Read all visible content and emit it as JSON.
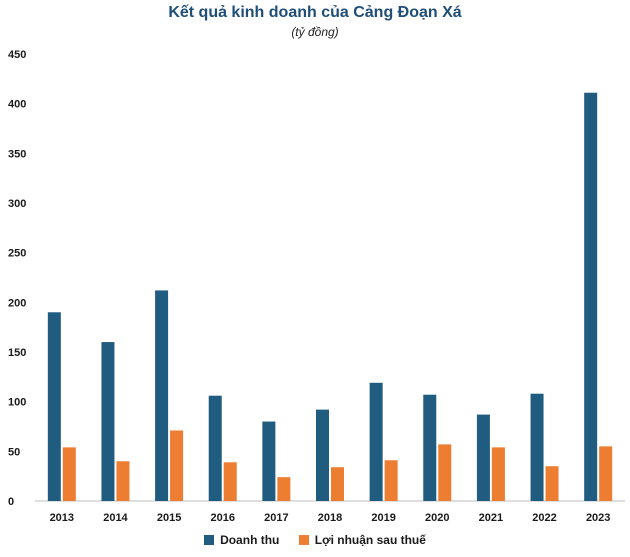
{
  "chart_data": {
    "type": "bar",
    "title": "Kết quả kinh doanh của Cảng Đoạn Xá",
    "subtitle": "(tỷ đồng)",
    "categories": [
      "2013",
      "2014",
      "2015",
      "2016",
      "2017",
      "2018",
      "2019",
      "2020",
      "2021",
      "2022",
      "2023"
    ],
    "series": [
      {
        "name": "Doanh thu",
        "color": "#1f5c80",
        "values": [
          190,
          160,
          212,
          106,
          80,
          92,
          119,
          107,
          87,
          108,
          411
        ]
      },
      {
        "name": "Lợi nhuận sau thuế",
        "color": "#ed7d31",
        "values": [
          54,
          40,
          71,
          39,
          24,
          34,
          41,
          57,
          54,
          35,
          55
        ]
      }
    ],
    "ylim": [
      0,
      450
    ],
    "yticks": [
      "0",
      "50",
      "100",
      "150",
      "200",
      "250",
      "300",
      "350",
      "400",
      "450"
    ],
    "grid": false,
    "legend": "bottom"
  }
}
